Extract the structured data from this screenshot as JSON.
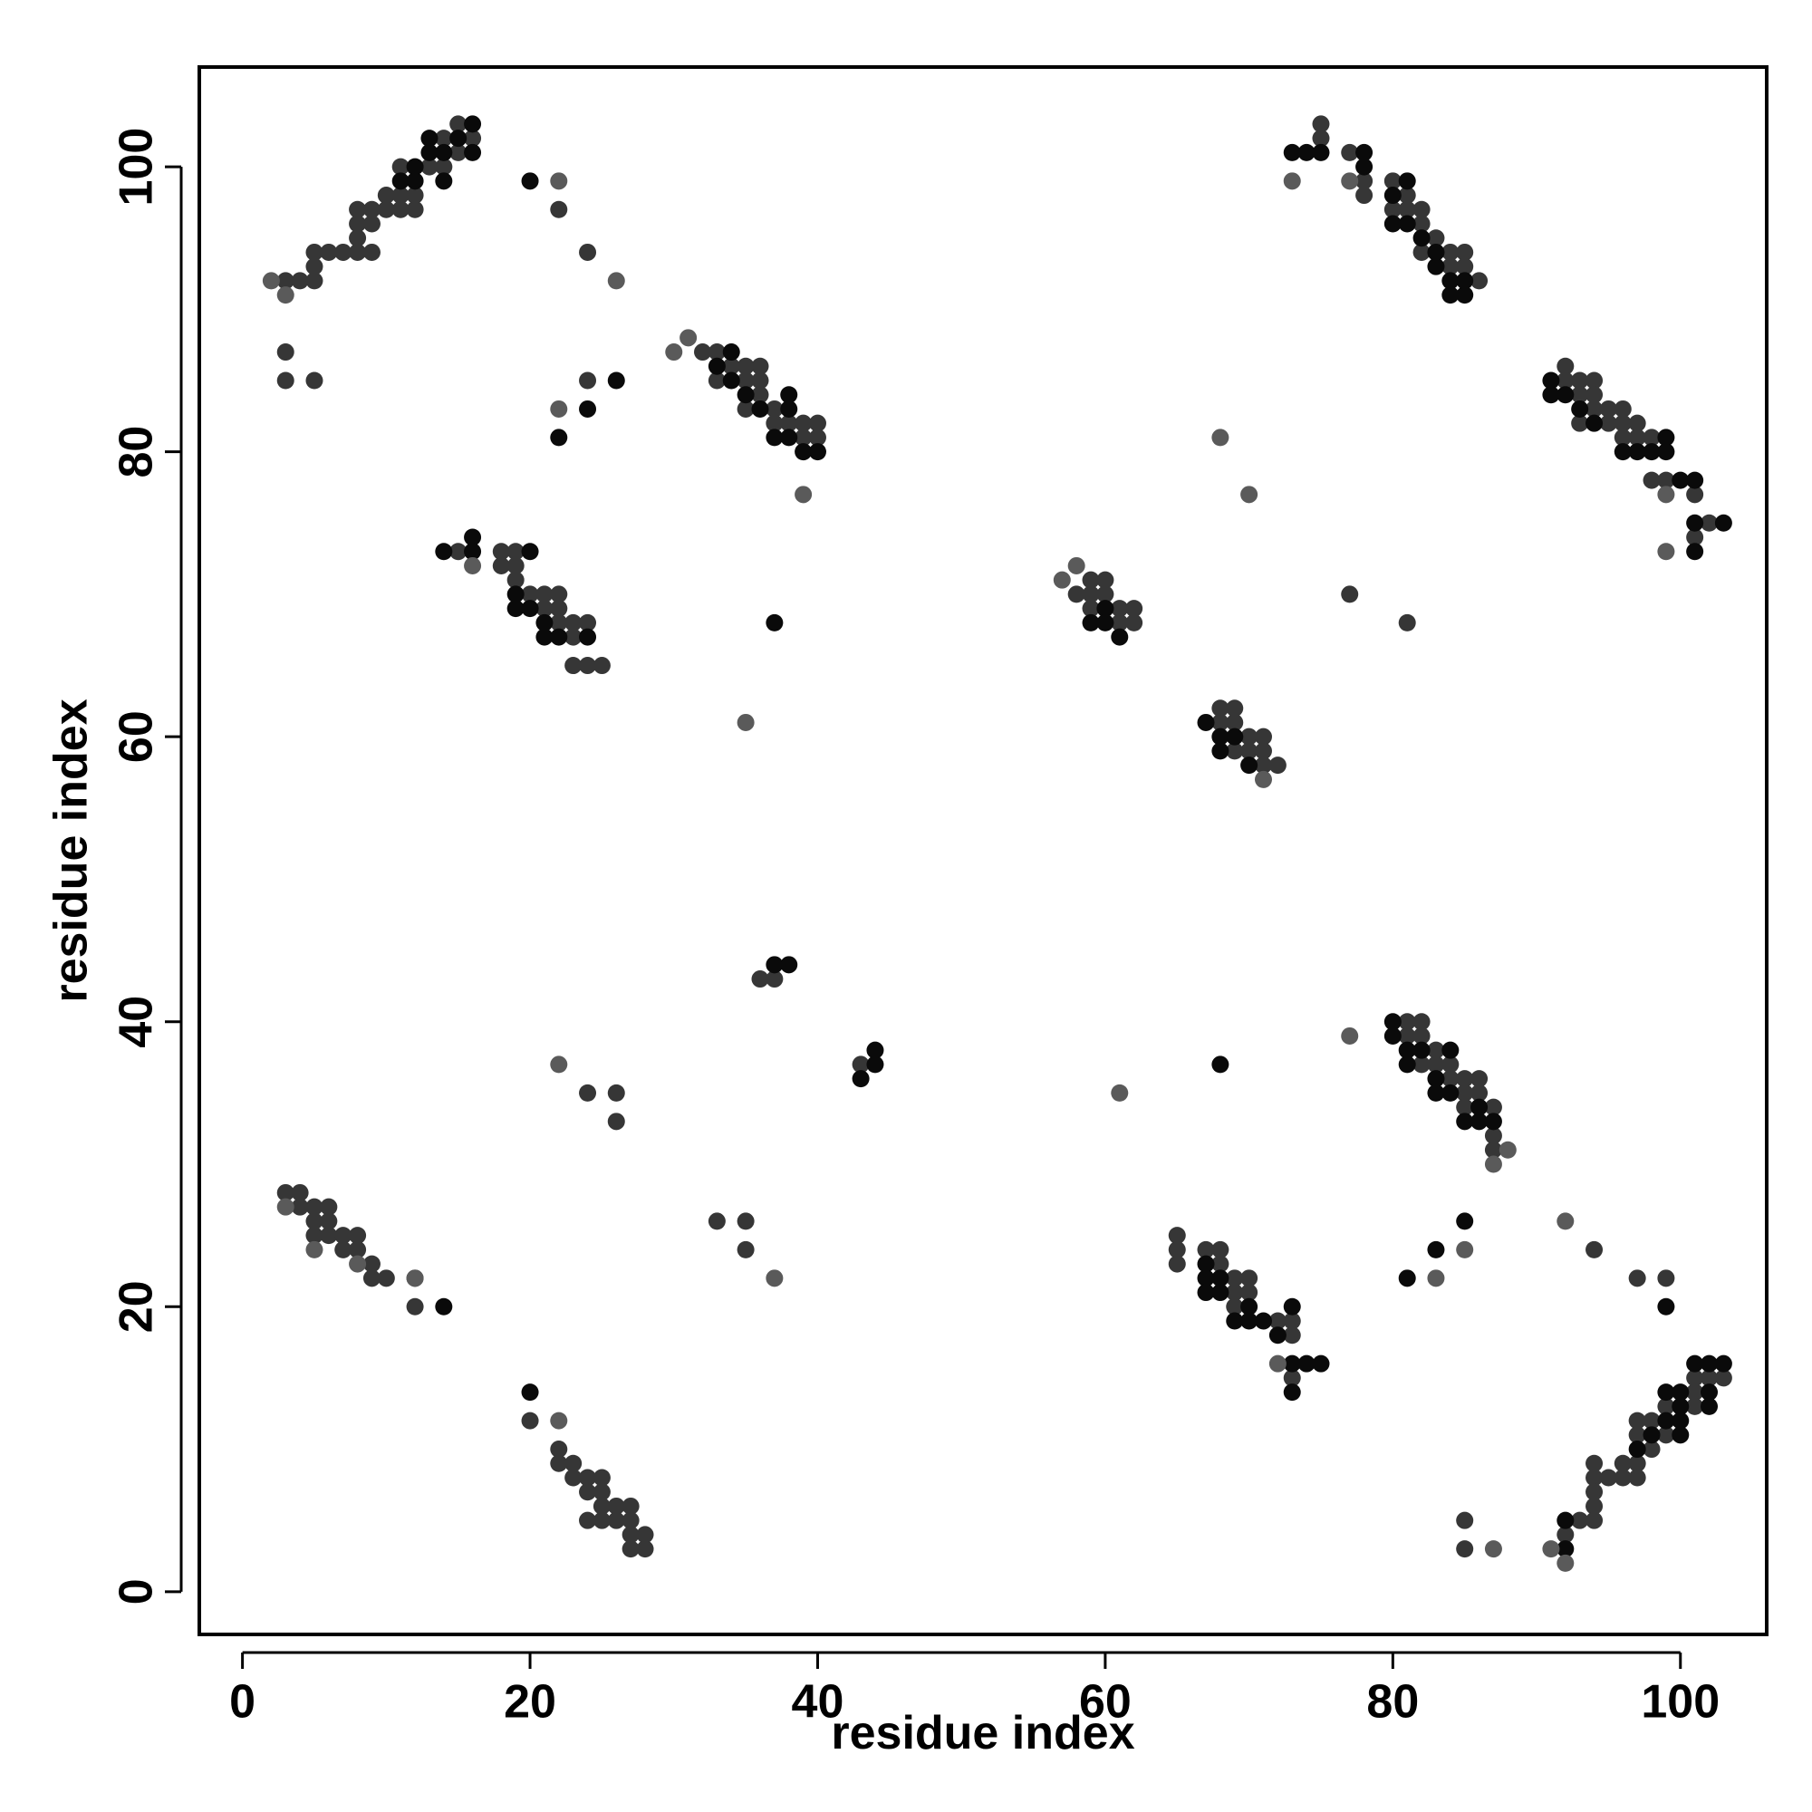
{
  "chart_data": {
    "type": "scatter",
    "x_label": "residue index",
    "y_label": "residue index",
    "xlim": [
      -3,
      106
    ],
    "ylim": [
      -3,
      107
    ],
    "xticks": [
      0,
      20,
      40,
      60,
      80,
      100
    ],
    "yticks": [
      0,
      20,
      40,
      60,
      80,
      100
    ],
    "series": [
      {
        "color": "#363636",
        "x": [
          3,
          4,
          5,
          5,
          5,
          6,
          7,
          8,
          8,
          8,
          8,
          9,
          9,
          9,
          10,
          10,
          11,
          11,
          11,
          12,
          12,
          13,
          14,
          14,
          15,
          15,
          16,
          3,
          3,
          5,
          22,
          24,
          24,
          32,
          33,
          33,
          34,
          35,
          35,
          35,
          36,
          36,
          36,
          37,
          37,
          38,
          39,
          39,
          40,
          40,
          15,
          18,
          18,
          19,
          19,
          19,
          20,
          21,
          21,
          22,
          22,
          22,
          23,
          23,
          24,
          23,
          24,
          25,
          36,
          37,
          43,
          24,
          26,
          26,
          3,
          4,
          4,
          5,
          5,
          5,
          6,
          6,
          6,
          7,
          7,
          8,
          8,
          9,
          9,
          10,
          12,
          12,
          33,
          35,
          35,
          20,
          22,
          22,
          23,
          23,
          24,
          24,
          24,
          25,
          25,
          25,
          25,
          26,
          26,
          27,
          27,
          27,
          27,
          28,
          28,
          75,
          75,
          77,
          78,
          78,
          80,
          80,
          81,
          81,
          82,
          82,
          82,
          83,
          84,
          84,
          85,
          85,
          86,
          92,
          92,
          93,
          93,
          93,
          94,
          94,
          94,
          95,
          95,
          96,
          96,
          96,
          97,
          97,
          98,
          98,
          99,
          101,
          101,
          102,
          77,
          81,
          58,
          59,
          59,
          59,
          60,
          60,
          61,
          61,
          62,
          62,
          68,
          68,
          69,
          69,
          69,
          70,
          70,
          71,
          71,
          71,
          72,
          81,
          81,
          82,
          82,
          82,
          83,
          83,
          84,
          84,
          85,
          85,
          85,
          86,
          86,
          87,
          87,
          87,
          94,
          97,
          99,
          65,
          65,
          65,
          67,
          68,
          68,
          69,
          69,
          69,
          70,
          70,
          72,
          73,
          73,
          73,
          85,
          85,
          92,
          93,
          94,
          94,
          94,
          94,
          94,
          95,
          96,
          96,
          97,
          97,
          97,
          97,
          98,
          98,
          99,
          99,
          101,
          101,
          101,
          102,
          103
        ],
        "y": [
          92,
          92,
          92,
          93,
          94,
          94,
          94,
          94,
          95,
          96,
          97,
          97,
          96,
          94,
          97,
          98,
          98,
          97,
          100,
          97,
          98,
          100,
          100,
          102,
          101,
          103,
          102,
          87,
          85,
          85,
          97,
          94,
          85,
          87,
          87,
          85,
          86,
          86,
          85,
          83,
          86,
          85,
          84,
          83,
          82,
          82,
          82,
          81,
          82,
          81,
          73,
          73,
          72,
          73,
          72,
          71,
          70,
          70,
          69,
          70,
          69,
          68,
          68,
          67,
          68,
          65,
          65,
          65,
          43,
          43,
          37,
          35,
          35,
          33,
          28,
          28,
          27,
          27,
          26,
          25,
          27,
          26,
          25,
          25,
          24,
          25,
          24,
          23,
          22,
          22,
          22,
          20,
          26,
          26,
          24,
          12,
          10,
          9,
          9,
          8,
          8,
          7,
          5,
          8,
          7,
          6,
          5,
          6,
          5,
          6,
          5,
          4,
          3,
          4,
          3,
          103,
          102,
          101,
          99,
          98,
          99,
          97,
          98,
          97,
          97,
          96,
          94,
          95,
          94,
          93,
          94,
          93,
          92,
          86,
          85,
          85,
          84,
          82,
          85,
          84,
          83,
          83,
          82,
          83,
          82,
          81,
          82,
          81,
          81,
          78,
          78,
          77,
          74,
          75,
          70,
          68,
          70,
          71,
          70,
          69,
          71,
          70,
          69,
          68,
          69,
          68,
          62,
          61,
          62,
          61,
          59,
          60,
          59,
          60,
          59,
          58,
          58,
          40,
          39,
          40,
          39,
          37,
          38,
          37,
          37,
          36,
          36,
          35,
          34,
          36,
          35,
          34,
          32,
          31,
          24,
          22,
          22,
          25,
          24,
          23,
          24,
          24,
          23,
          22,
          21,
          20,
          22,
          21,
          19,
          19,
          18,
          15,
          5,
          3,
          4,
          5,
          9,
          8,
          7,
          6,
          5,
          8,
          9,
          8,
          12,
          11,
          9,
          8,
          12,
          10,
          13,
          11,
          15,
          14,
          13,
          15,
          15
        ]
      },
      {
        "color": "#0a0a0a",
        "x": [
          20,
          24,
          26,
          22,
          37,
          20,
          14,
          68,
          99,
          83,
          85,
          81,
          73,
          14,
          20,
          16,
          16,
          19,
          20,
          21,
          22,
          24,
          21,
          19,
          13,
          14,
          14,
          15,
          16,
          16,
          12,
          12,
          11,
          13,
          33,
          34,
          34,
          35,
          36,
          37,
          38,
          38,
          38,
          40,
          39,
          73,
          74,
          75,
          78,
          78,
          80,
          81,
          80,
          81,
          82,
          83,
          83,
          84,
          84,
          85,
          85,
          92,
          91,
          91,
          93,
          94,
          96,
          97,
          98,
          99,
          99,
          100,
          101,
          101,
          101,
          103,
          59,
          60,
          60,
          61,
          68,
          68,
          69,
          70,
          67,
          67,
          67,
          67,
          68,
          68,
          69,
          70,
          70,
          72,
          73,
          73,
          74,
          75,
          71,
          80,
          80,
          81,
          81,
          82,
          83,
          83,
          84,
          84,
          85,
          86,
          86,
          87,
          99,
          100,
          100,
          99,
          100,
          100,
          101,
          102,
          102,
          102,
          103,
          98,
          97,
          92,
          92,
          44,
          44,
          43,
          38,
          37
        ],
        "y": [
          99,
          83,
          85,
          81,
          68,
          14,
          20,
          37,
          20,
          24,
          26,
          22,
          14,
          73,
          73,
          74,
          73,
          69,
          69,
          67,
          67,
          67,
          68,
          70,
          102,
          101,
          99,
          102,
          101,
          103,
          100,
          99,
          99,
          101,
          86,
          85,
          87,
          84,
          83,
          81,
          81,
          83,
          84,
          80,
          80,
          101,
          101,
          101,
          100,
          101,
          98,
          99,
          96,
          96,
          95,
          94,
          93,
          92,
          91,
          91,
          92,
          84,
          84,
          85,
          83,
          82,
          80,
          80,
          80,
          81,
          80,
          78,
          78,
          75,
          73,
          75,
          68,
          69,
          68,
          67,
          60,
          59,
          60,
          58,
          61,
          23,
          22,
          21,
          21,
          22,
          19,
          19,
          20,
          18,
          20,
          16,
          16,
          16,
          19,
          40,
          39,
          38,
          37,
          38,
          36,
          35,
          38,
          35,
          33,
          33,
          34,
          33,
          14,
          14,
          13,
          12,
          12,
          11,
          16,
          16,
          14,
          13,
          16,
          11,
          10,
          3,
          5,
          38,
          37,
          36,
          44,
          44
        ]
      },
      {
        "color": "#5a5a5a",
        "x": [
          2,
          3,
          22,
          22,
          26,
          22,
          35,
          39,
          37,
          22,
          12,
          16,
          73,
          77,
          68,
          70,
          77,
          61,
          92,
          83,
          85,
          87,
          91,
          92,
          72,
          71,
          87,
          88,
          99,
          99,
          58,
          57,
          31,
          30,
          3,
          5,
          8
        ],
        "y": [
          92,
          91,
          99,
          83,
          92,
          37,
          61,
          77,
          22,
          12,
          22,
          72,
          99,
          99,
          81,
          77,
          39,
          35,
          26,
          22,
          24,
          3,
          3,
          2,
          16,
          57,
          30,
          31,
          73,
          77,
          72,
          71,
          88,
          87,
          27,
          24,
          23
        ]
      }
    ]
  }
}
